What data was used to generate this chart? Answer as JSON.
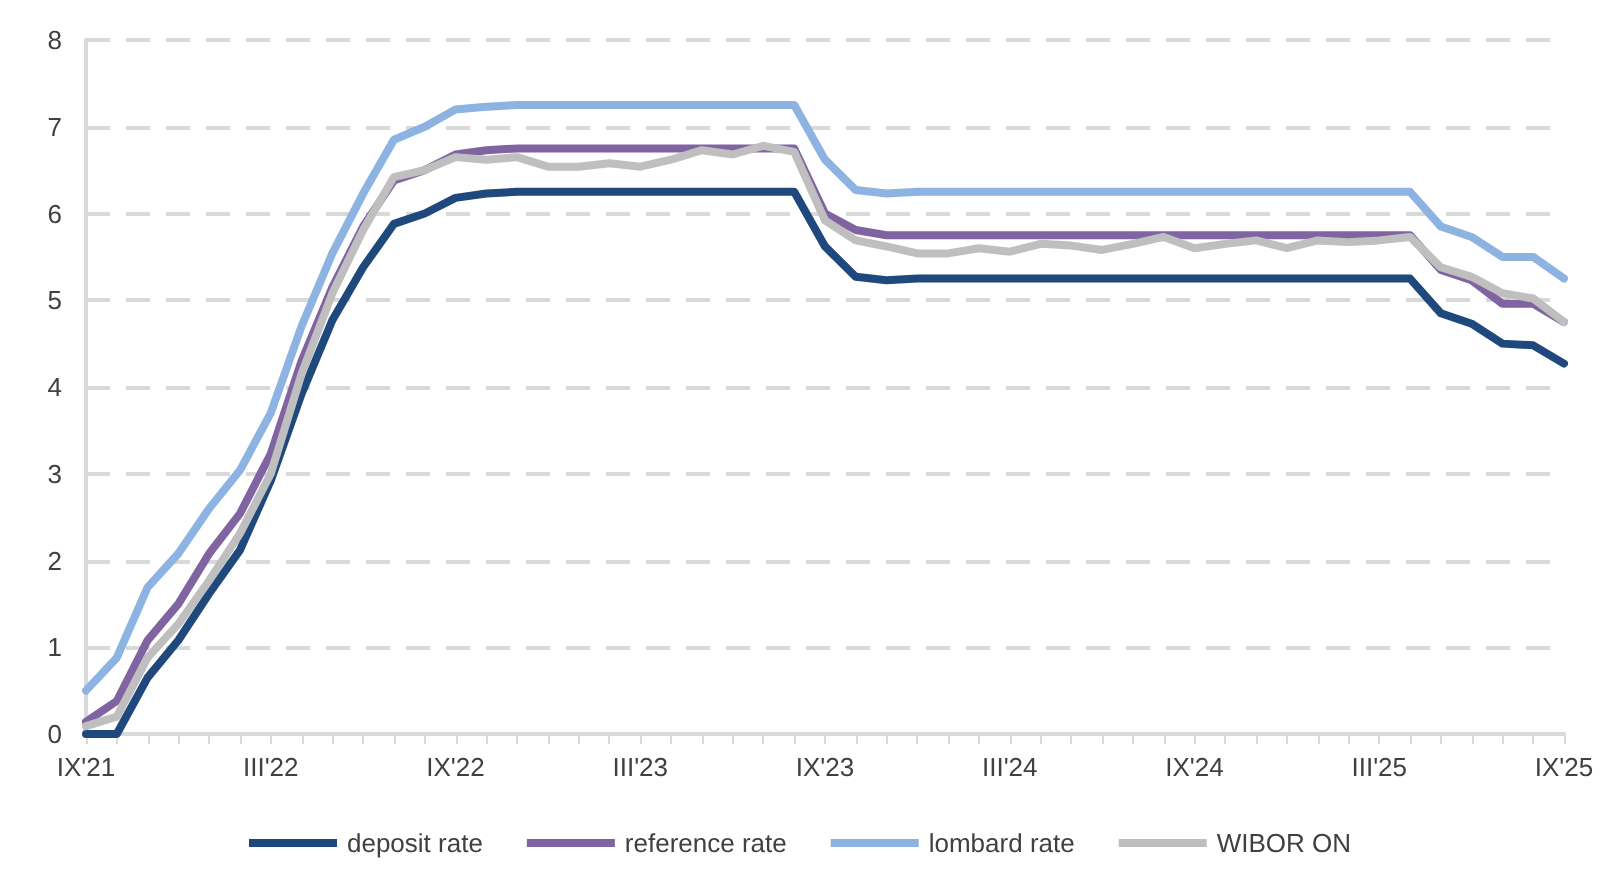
{
  "chart_data": {
    "type": "line",
    "categories": [
      "IX'21",
      null,
      null,
      null,
      null,
      null,
      "III'22",
      null,
      null,
      null,
      null,
      null,
      "IX'22",
      null,
      null,
      null,
      null,
      null,
      "III'23",
      null,
      null,
      null,
      null,
      null,
      "IX'23",
      null,
      null,
      null,
      null,
      null,
      "III'24",
      null,
      null,
      null,
      null,
      null,
      "IX'24",
      null,
      null,
      null,
      null,
      null,
      "III'25",
      null,
      null,
      null,
      null,
      null,
      "IX'25"
    ],
    "series": [
      {
        "name": "deposit rate",
        "color": "#1f497d",
        "values": [
          0,
          0,
          0.65,
          1.08,
          1.62,
          2.12,
          2.92,
          3.92,
          4.77,
          5.38,
          5.88,
          6,
          6.18,
          6.23,
          6.25,
          6.25,
          6.25,
          6.25,
          6.25,
          6.25,
          6.25,
          6.25,
          6.25,
          6.25,
          5.62,
          5.27,
          5.23,
          5.25,
          5.25,
          5.25,
          5.25,
          5.25,
          5.25,
          5.25,
          5.25,
          5.25,
          5.25,
          5.25,
          5.25,
          5.25,
          5.25,
          5.25,
          5.25,
          5.25,
          4.85,
          4.73,
          4.5,
          4.48,
          4.27
        ]
      },
      {
        "name": "reference rate",
        "color": "#8064a2",
        "values": [
          0.14,
          0.38,
          1.08,
          1.5,
          2.08,
          2.54,
          3.23,
          4.3,
          5.15,
          5.85,
          6.38,
          6.5,
          6.68,
          6.73,
          6.75,
          6.75,
          6.75,
          6.75,
          6.75,
          6.75,
          6.75,
          6.75,
          6.75,
          6.75,
          6,
          5.81,
          5.75,
          5.75,
          5.75,
          5.75,
          5.75,
          5.75,
          5.75,
          5.75,
          5.75,
          5.75,
          5.75,
          5.75,
          5.75,
          5.75,
          5.75,
          5.75,
          5.75,
          5.75,
          5.35,
          5.23,
          4.96,
          4.96,
          4.75
        ]
      },
      {
        "name": "lombard rate",
        "color": "#8db3e2",
        "values": [
          0.5,
          0.88,
          1.69,
          2.08,
          2.6,
          3.04,
          3.7,
          4.7,
          5.54,
          6.23,
          6.85,
          7,
          7.2,
          7.23,
          7.25,
          7.25,
          7.25,
          7.25,
          7.25,
          7.25,
          7.25,
          7.25,
          7.25,
          7.25,
          6.62,
          6.27,
          6.23,
          6.25,
          6.25,
          6.25,
          6.25,
          6.25,
          6.25,
          6.25,
          6.25,
          6.25,
          6.25,
          6.25,
          6.25,
          6.25,
          6.25,
          6.25,
          6.25,
          6.25,
          5.85,
          5.73,
          5.5,
          5.5,
          5.25
        ]
      },
      {
        "name": "WIBOR ON",
        "color": "#bfbfbf",
        "values": [
          0.09,
          0.2,
          0.88,
          1.27,
          1.77,
          2.31,
          3,
          4.15,
          5.08,
          5.81,
          6.42,
          6.5,
          6.65,
          6.62,
          6.65,
          6.54,
          6.54,
          6.58,
          6.54,
          6.62,
          6.73,
          6.68,
          6.78,
          6.71,
          5.92,
          5.69,
          5.62,
          5.54,
          5.54,
          5.6,
          5.56,
          5.65,
          5.63,
          5.58,
          5.65,
          5.73,
          5.6,
          5.65,
          5.69,
          5.6,
          5.69,
          5.67,
          5.69,
          5.73,
          5.38,
          5.27,
          5.08,
          5.02,
          4.75
        ]
      }
    ],
    "ylim": [
      0,
      8
    ],
    "yticks": [
      0,
      1,
      2,
      3,
      4,
      5,
      6,
      7,
      8
    ],
    "grid": "y",
    "legend": "bottom",
    "marker": "none",
    "line_style": "solid"
  }
}
